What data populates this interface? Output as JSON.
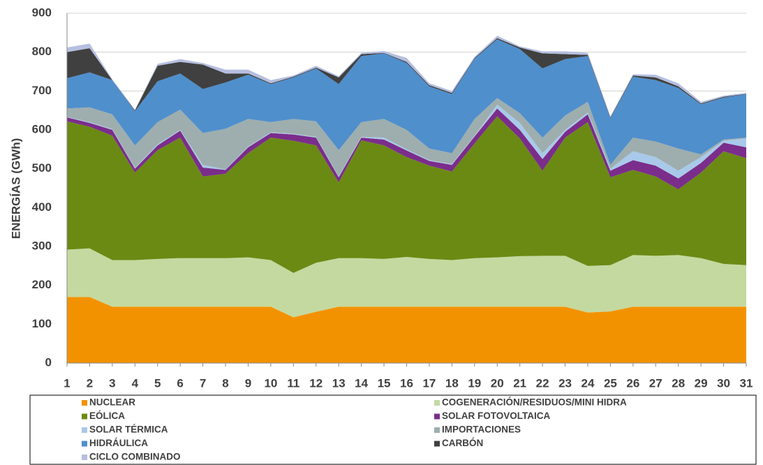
{
  "chart_data": {
    "type": "stacked_area",
    "y_label": "ENERGÍAS (GWh)",
    "categories": [
      "1",
      "2",
      "3",
      "4",
      "5",
      "6",
      "7",
      "8",
      "9",
      "10",
      "11",
      "12",
      "13",
      "14",
      "15",
      "16",
      "17",
      "18",
      "19",
      "20",
      "21",
      "22",
      "23",
      "24",
      "25",
      "26",
      "27",
      "28",
      "29",
      "30",
      "31"
    ],
    "ylim": [
      0,
      900
    ],
    "yticks": [
      0,
      100,
      200,
      300,
      400,
      500,
      600,
      700,
      800,
      900
    ],
    "grid": true,
    "series": [
      {
        "name": "NUCLEAR",
        "color": "#f39200",
        "values": [
          170,
          170,
          145,
          145,
          145,
          145,
          145,
          145,
          145,
          145,
          118,
          132,
          145,
          145,
          145,
          145,
          145,
          145,
          145,
          145,
          145,
          145,
          145,
          130,
          133,
          145,
          145,
          145,
          145,
          145,
          145
        ]
      },
      {
        "name": "COGENERACIÓN/RESIDUOS/MINI HIDRA",
        "color": "#c4d9a0",
        "values": [
          122,
          125,
          120,
          120,
          123,
          125,
          125,
          125,
          127,
          120,
          114,
          126,
          125,
          125,
          123,
          128,
          123,
          120,
          125,
          127,
          130,
          131,
          131,
          120,
          119,
          133,
          131,
          133,
          125,
          110,
          107
        ]
      },
      {
        "name": "EÓLICA",
        "color": "#6b8a14",
        "values": [
          330,
          313,
          320,
          225,
          280,
          310,
          210,
          217,
          268,
          315,
          340,
          302,
          195,
          303,
          292,
          257,
          240,
          228,
          295,
          363,
          303,
          219,
          304,
          370,
          226,
          219,
          204,
          169,
          220,
          290,
          275
        ]
      },
      {
        "name": "SOLAR FOTOVOLTAICA",
        "color": "#7b2d8b",
        "values": [
          10,
          10,
          15,
          10,
          12,
          18,
          23,
          10,
          15,
          12,
          16,
          20,
          13,
          7,
          15,
          17,
          12,
          17,
          18,
          20,
          22,
          30,
          15,
          20,
          17,
          25,
          28,
          28,
          25,
          22,
          28
        ]
      },
      {
        "name": "SOLAR TÉRMICA",
        "color": "#a9c9ea",
        "values": [
          1,
          2,
          2,
          2,
          3,
          2,
          7,
          1,
          2,
          2,
          2,
          2,
          2,
          2,
          5,
          3,
          2,
          2,
          2,
          10,
          18,
          15,
          5,
          5,
          5,
          23,
          22,
          20,
          15,
          5,
          23
        ]
      },
      {
        "name": "IMPORTACIONES",
        "color": "#9eaeae",
        "values": [
          22,
          38,
          38,
          58,
          57,
          52,
          82,
          105,
          71,
          26,
          38,
          40,
          68,
          38,
          48,
          50,
          30,
          28,
          43,
          17,
          25,
          40,
          37,
          27,
          10,
          35,
          40,
          57,
          7,
          3,
          2
        ]
      },
      {
        "name": "HIDRÁULICA",
        "color": "#4f8fcc",
        "values": [
          78,
          90,
          88,
          88,
          105,
          93,
          113,
          119,
          114,
          98,
          107,
          136,
          170,
          170,
          169,
          172,
          160,
          152,
          155,
          151,
          165,
          178,
          145,
          118,
          120,
          157,
          158,
          156,
          129,
          108,
          112
        ]
      },
      {
        "name": "CARBÓN",
        "color": "#404040",
        "values": [
          67,
          62,
          0,
          2,
          40,
          30,
          63,
          23,
          3,
          2,
          2,
          2,
          17,
          5,
          1,
          3,
          3,
          3,
          2,
          3,
          4,
          39,
          13,
          3,
          2,
          3,
          7,
          4,
          2,
          2,
          1
        ]
      },
      {
        "name": "CICLO COMBINADO",
        "color": "#b6bfe0",
        "values": [
          12,
          12,
          2,
          2,
          5,
          7,
          4,
          10,
          10,
          8,
          3,
          5,
          3,
          3,
          5,
          10,
          5,
          5,
          3,
          6,
          3,
          5,
          7,
          5,
          3,
          3,
          7,
          8,
          4,
          3,
          2
        ]
      }
    ]
  }
}
